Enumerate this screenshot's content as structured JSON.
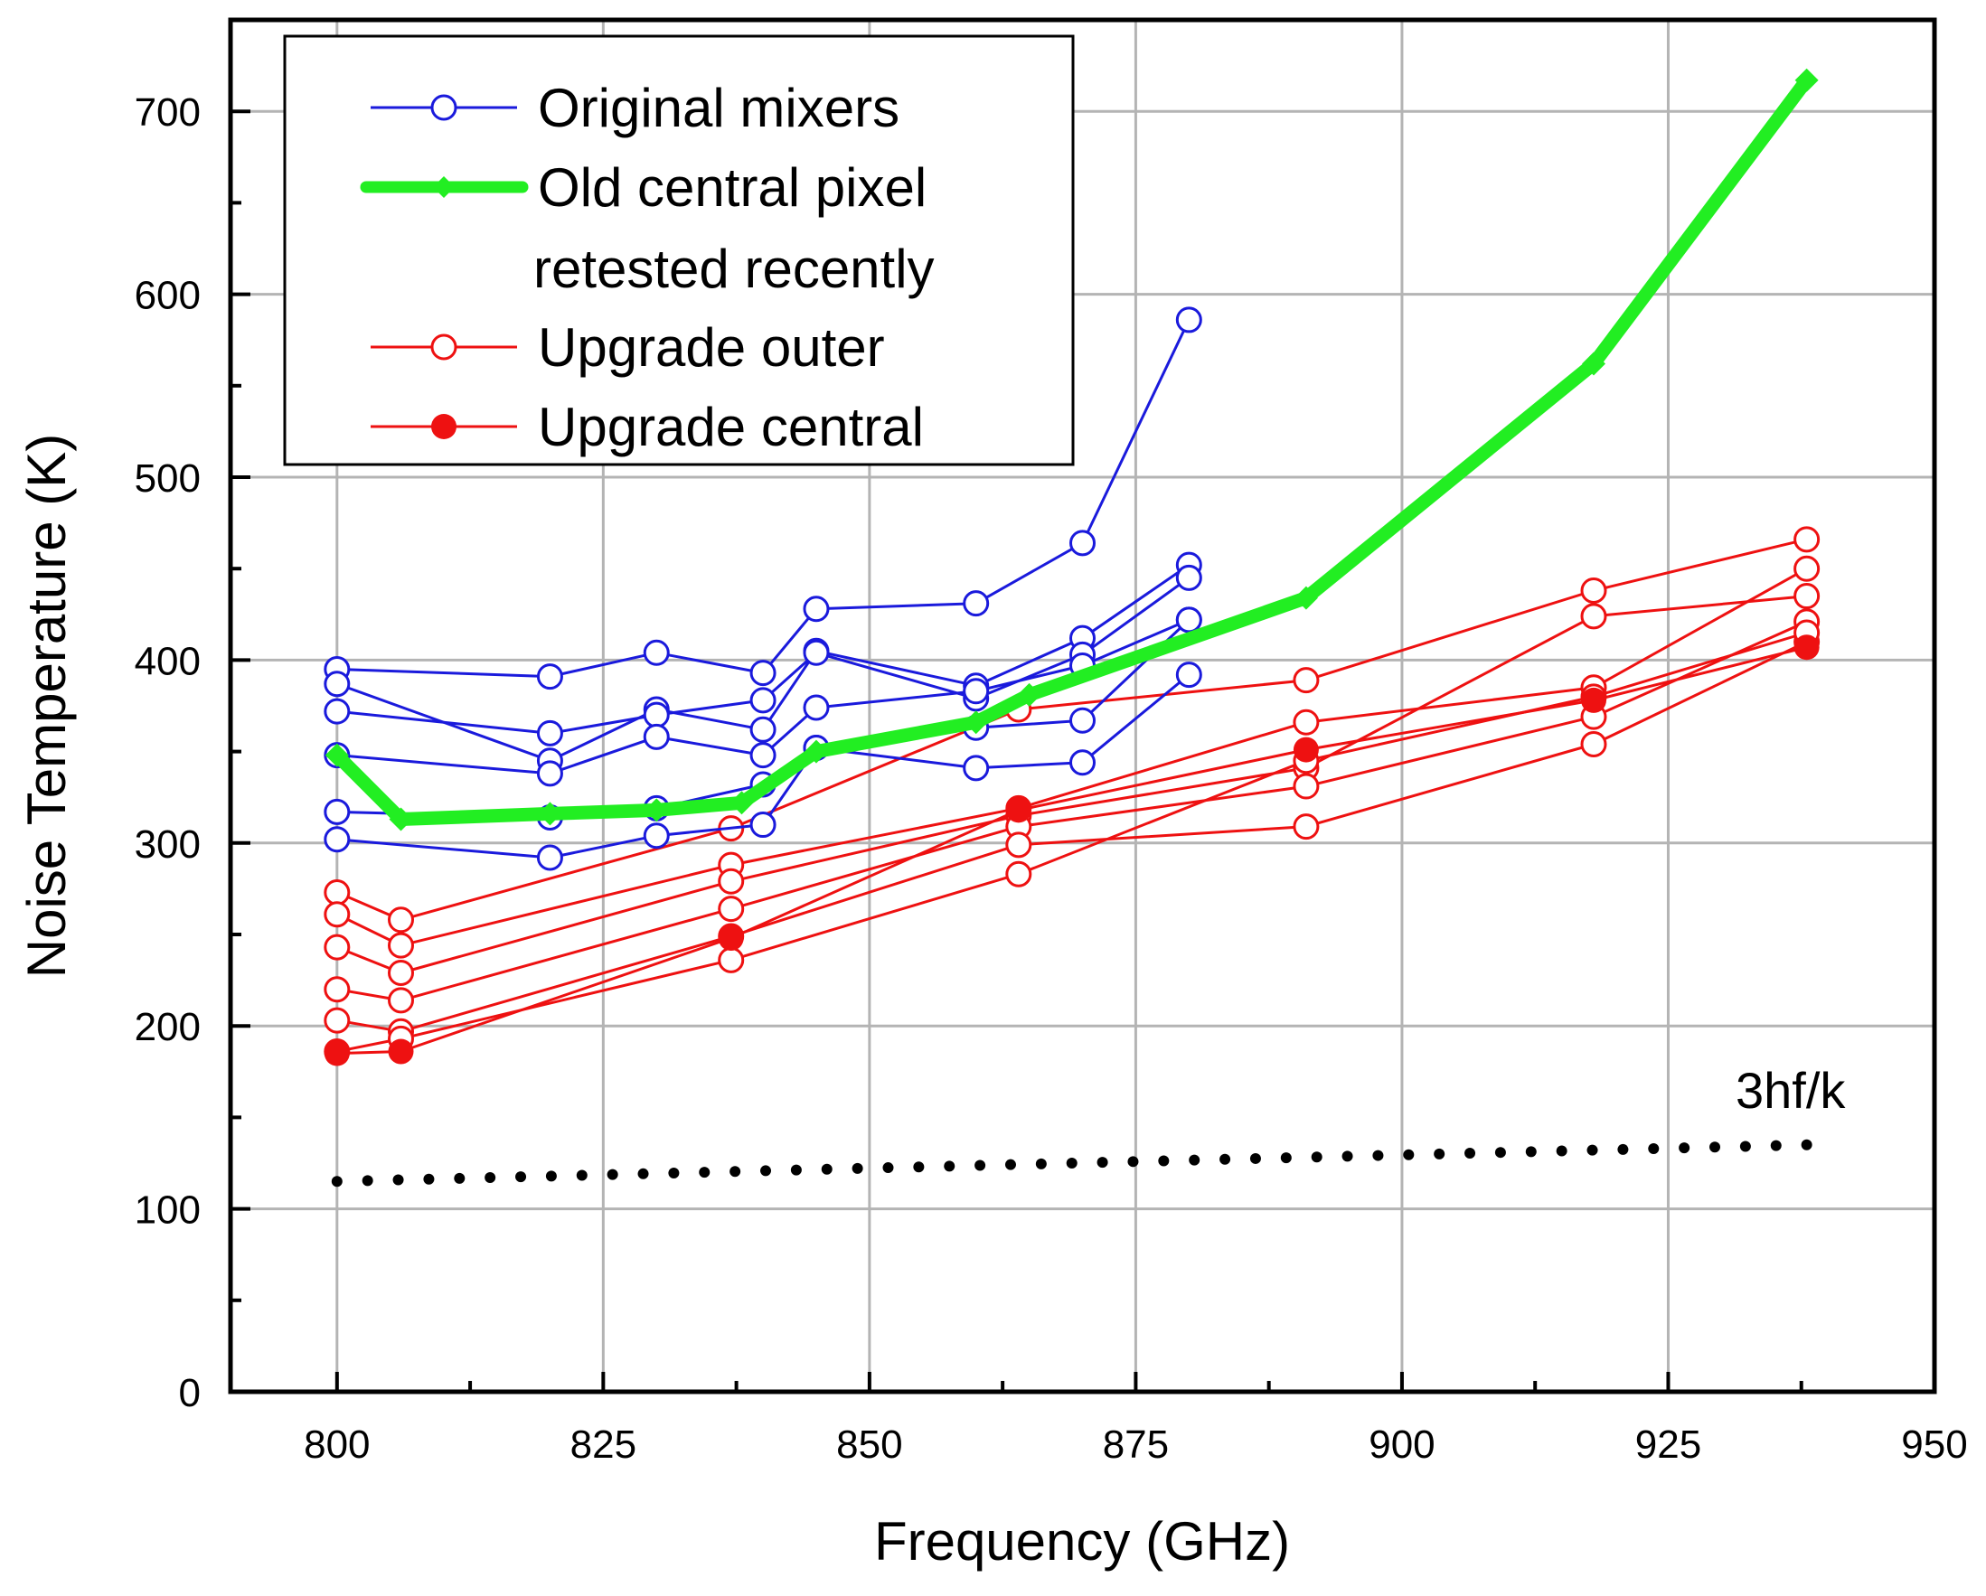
{
  "chart_data": {
    "type": "line",
    "xlabel": "Frequency (GHz)",
    "ylabel": "Noise Temperature (K)",
    "xlim": [
      790,
      950
    ],
    "ylim": [
      0,
      750
    ],
    "xticks": [
      800,
      825,
      850,
      875,
      900,
      925,
      950
    ],
    "yticks": [
      0,
      100,
      200,
      300,
      400,
      500,
      600,
      700
    ],
    "grid": true,
    "legend_position": "top-left",
    "legend": [
      {
        "label": "Original mixers",
        "style": "blue-open-circle"
      },
      {
        "label": "Old central pixel",
        "label2": "retested recently",
        "style": "green-thick-diamond"
      },
      {
        "label": "Upgrade outer",
        "style": "red-open-circle"
      },
      {
        "label": "Upgrade central",
        "style": "red-filled-circle"
      }
    ],
    "colors": {
      "blue": "#1a1adc",
      "green": "#22ee22",
      "red": "#ee1111",
      "black": "#000000",
      "grid": "#b4b4b4"
    },
    "series": [
      {
        "name": "Original mixers",
        "group": "blue",
        "x": [
          800,
          820,
          830,
          840,
          845,
          860,
          870,
          880
        ],
        "y": [
          395,
          391,
          404,
          393,
          428,
          431,
          464,
          586
        ]
      },
      {
        "name": "Original mixers",
        "group": "blue",
        "x": [
          800,
          820,
          830,
          840,
          845,
          860,
          870,
          880
        ],
        "y": [
          387,
          345,
          373,
          362,
          405,
          386,
          412,
          452
        ]
      },
      {
        "name": "Original mixers",
        "group": "blue",
        "x": [
          800,
          820,
          830,
          840,
          845,
          860,
          870,
          880
        ],
        "y": [
          372,
          360,
          370,
          378,
          404,
          379,
          403,
          445
        ]
      },
      {
        "name": "Original mixers",
        "group": "blue",
        "x": [
          800,
          820,
          830,
          840,
          845,
          860,
          870,
          880
        ],
        "y": [
          348,
          338,
          358,
          348,
          374,
          383,
          397,
          422
        ]
      },
      {
        "name": "Original mixers",
        "group": "blue",
        "x": [
          800,
          820,
          830,
          840,
          845,
          860,
          870,
          880
        ],
        "y": [
          317,
          314,
          319,
          332,
          352,
          341,
          344,
          392
        ]
      },
      {
        "name": "Original mixers",
        "group": "blue",
        "x": [
          800,
          820,
          830,
          840,
          845,
          860,
          870,
          880
        ],
        "y": [
          302,
          292,
          304,
          310,
          352,
          363,
          367,
          422
        ]
      },
      {
        "name": "Old central pixel retested recently",
        "group": "green",
        "x": [
          800,
          806,
          820,
          830,
          838,
          845,
          860,
          865,
          891,
          918,
          938
        ],
        "y": [
          348,
          313,
          316,
          318,
          322,
          350,
          366,
          381,
          434,
          562,
          717
        ]
      },
      {
        "name": "Upgrade outer",
        "group": "red-open",
        "x": [
          800,
          806,
          837,
          864,
          891,
          918,
          938
        ],
        "y": [
          273,
          258,
          308,
          373,
          389,
          438,
          466
        ]
      },
      {
        "name": "Upgrade outer",
        "group": "red-open",
        "x": [
          800,
          806,
          837,
          864,
          891,
          918,
          938
        ],
        "y": [
          261,
          244,
          288,
          319,
          366,
          385,
          450
        ]
      },
      {
        "name": "Upgrade outer",
        "group": "red-open",
        "x": [
          800,
          806,
          837,
          864,
          891,
          918,
          938
        ],
        "y": [
          243,
          229,
          279,
          315,
          341,
          424,
          435
        ]
      },
      {
        "name": "Upgrade outer",
        "group": "red-open",
        "x": [
          800,
          806,
          837,
          864,
          891,
          918,
          938
        ],
        "y": [
          220,
          214,
          264,
          309,
          331,
          369,
          421
        ]
      },
      {
        "name": "Upgrade outer",
        "group": "red-open",
        "x": [
          800,
          806,
          837,
          864,
          891,
          918,
          938
        ],
        "y": [
          203,
          197,
          249,
          299,
          309,
          354,
          410
        ]
      },
      {
        "name": "Upgrade outer",
        "group": "red-open",
        "x": [
          800,
          806,
          837,
          864,
          891,
          918,
          938
        ],
        "y": [
          186,
          193,
          236,
          283,
          345,
          380,
          415
        ]
      },
      {
        "name": "Upgrade central",
        "group": "red-filled",
        "x": [
          800,
          806,
          837,
          864,
          891,
          918,
          938
        ],
        "y": [
          185,
          186,
          248,
          318,
          351,
          378,
          407
        ]
      },
      {
        "name": "3hf/k",
        "group": "dotted",
        "x": [
          800,
          938
        ],
        "y": [
          115,
          135
        ]
      }
    ],
    "annotations": [
      {
        "text": "3hf/k",
        "x": 933,
        "y": 150
      }
    ]
  }
}
